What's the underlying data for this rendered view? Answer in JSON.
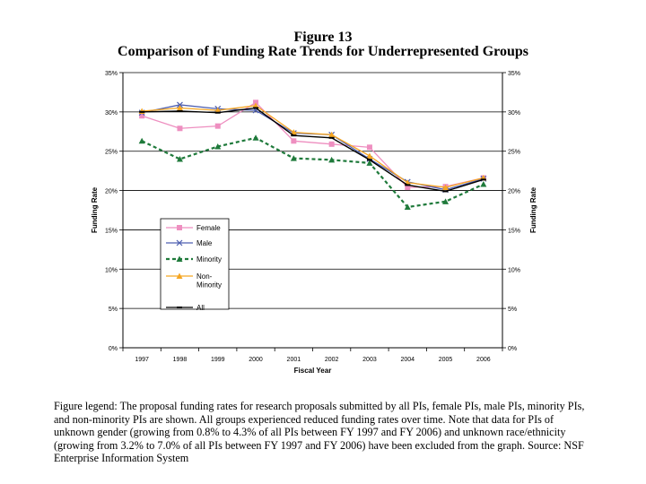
{
  "figure": {
    "number": "Figure 13",
    "title": "Comparison of Funding Rate Trends for Underrepresented Groups"
  },
  "chart_data": {
    "type": "line",
    "xlabel": "Fiscal Year",
    "ylabel": "Funding Rate",
    "ylabel_right": "Funding Rate",
    "ylim": [
      0,
      35
    ],
    "y_ticks": [
      "0%",
      "5%",
      "10%",
      "15%",
      "20%",
      "25%",
      "30%",
      "35%"
    ],
    "y_tick_values": [
      0,
      5,
      10,
      15,
      20,
      25,
      30,
      35
    ],
    "categories": [
      "1997",
      "1998",
      "1999",
      "2000",
      "2001",
      "2002",
      "2003",
      "2004",
      "2005",
      "2006"
    ],
    "grid": true,
    "legend_position": "lower-left",
    "series": [
      {
        "name": "Female",
        "color": "#ee8fc0",
        "marker": "square",
        "dashed": false,
        "values": [
          29.5,
          27.9,
          28.2,
          31.2,
          26.3,
          25.9,
          25.5,
          20.4,
          20.5,
          21.6
        ]
      },
      {
        "name": "Male",
        "color": "#4e5fb0",
        "marker": "x",
        "dashed": false,
        "values": [
          29.9,
          30.9,
          30.4,
          30.2,
          27.3,
          27.1,
          24.0,
          21.1,
          20.1,
          21.5
        ]
      },
      {
        "name": "Minority",
        "color": "#1f7a3b",
        "marker": "triangle",
        "dashed": true,
        "values": [
          26.3,
          24.0,
          25.6,
          26.7,
          24.1,
          23.9,
          23.5,
          17.9,
          18.6,
          20.8
        ]
      },
      {
        "name": "Non-Minority",
        "color": "#f5a623",
        "marker": "triangle",
        "dashed": false,
        "values": [
          30.1,
          30.5,
          30.2,
          30.8,
          27.4,
          27.1,
          24.4,
          21.0,
          20.4,
          21.6
        ]
      },
      {
        "name": "All",
        "color": "#000000",
        "marker": "dash",
        "dashed": false,
        "values": [
          30.0,
          30.1,
          29.9,
          30.5,
          27.0,
          26.7,
          23.9,
          20.7,
          19.9,
          21.4
        ]
      }
    ]
  },
  "caption": "Figure legend:  The proposal funding rates for research proposals submitted by all PIs, female PIs, male PIs, minority PIs, and non-minority PIs are shown.  All groups experienced reduced funding rates over time.  Note that data for PIs of unknown gender (growing from 0.8% to 4.3% of all PIs between FY 1997 and FY 2006) and unknown race/ethnicity (growing from 3.2% to 7.0% of all PIs between FY 1997 and FY 2006) have been excluded from the graph.  Source:  NSF Enterprise Information System"
}
